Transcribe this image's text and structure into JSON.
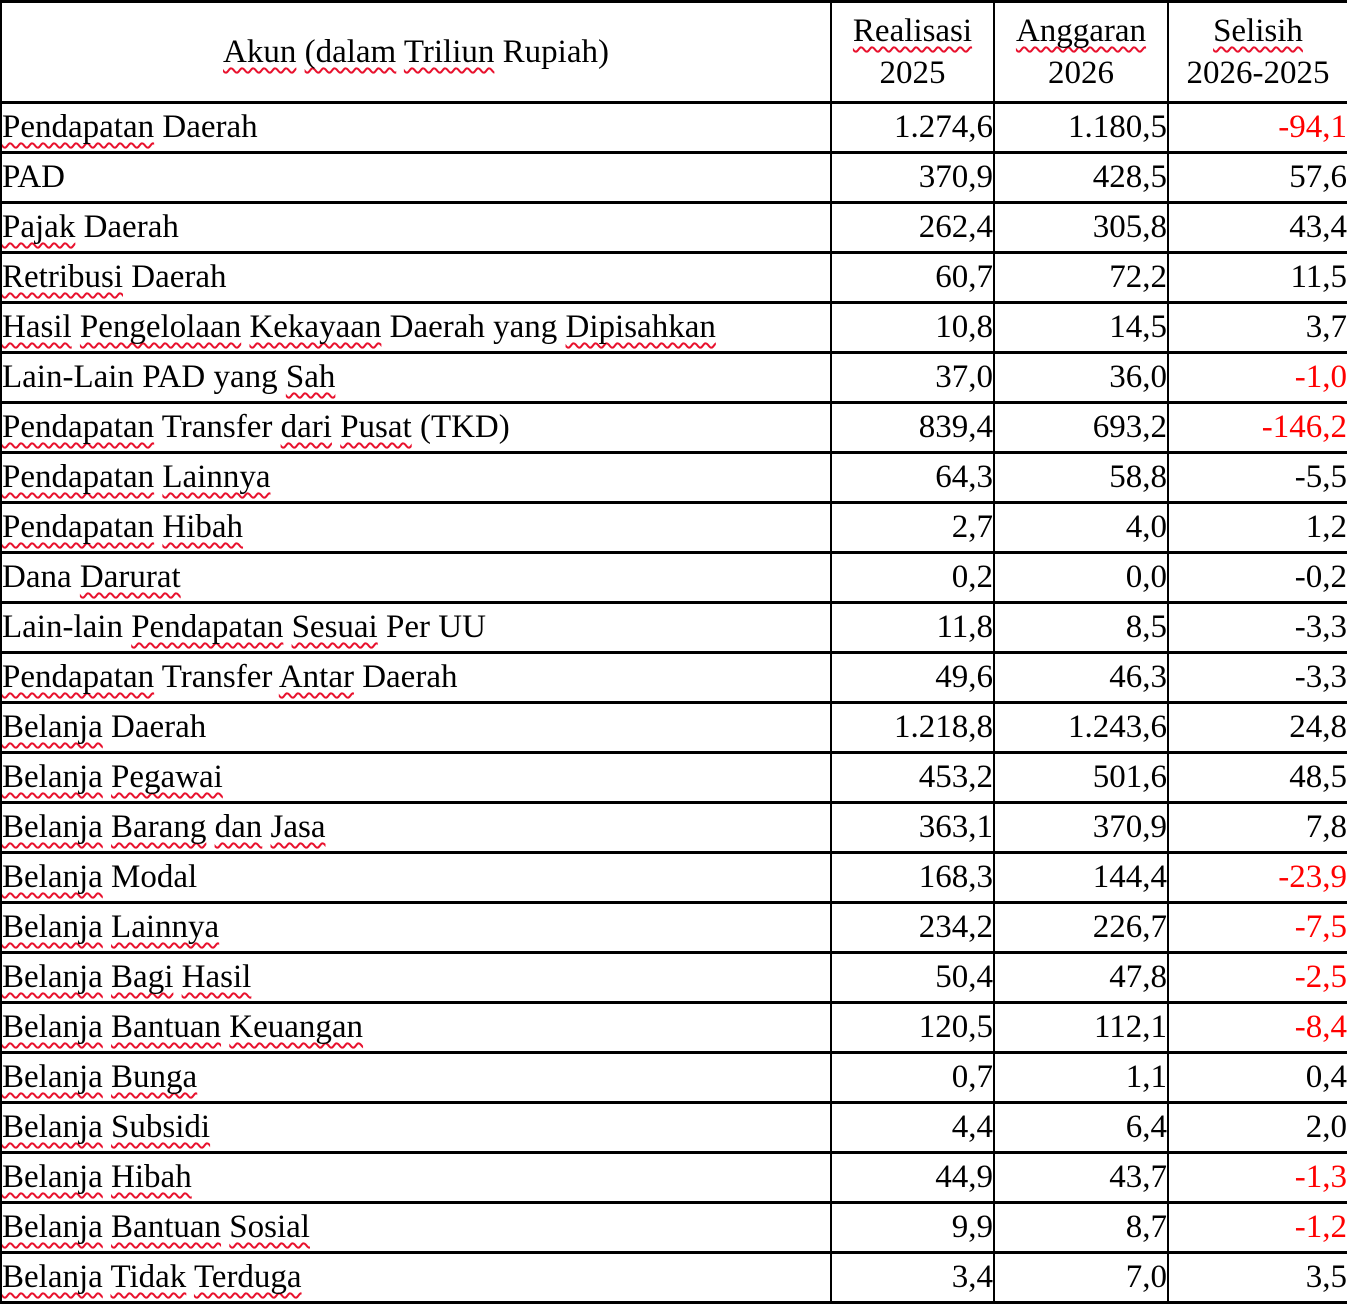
{
  "colors": {
    "text": "#000000",
    "negative_value_red": "#ff0000",
    "squiggle_red": "#e8112d",
    "border": "#000000",
    "background": "#ffffff"
  },
  "table": {
    "columns": [
      {
        "id": "akun",
        "label": "Akun (dalam Triliun Rupiah)",
        "header_parts": [
          {
            "t": "Akun",
            "w": true
          },
          {
            "t": "(dalam",
            "w": true
          },
          {
            "t": "Triliun",
            "w": true
          },
          {
            "t": "Rupiah)",
            "w": false
          }
        ],
        "header_line2": ""
      },
      {
        "id": "realisasi",
        "label": "Realisasi 2025",
        "header_parts": [
          {
            "t": "Realisasi",
            "w": true
          }
        ],
        "header_line2": "2025"
      },
      {
        "id": "anggaran",
        "label": "Anggaran 2026",
        "header_parts": [
          {
            "t": "Anggaran",
            "w": true
          }
        ],
        "header_line2": "2026"
      },
      {
        "id": "selisih",
        "label": "Selisih 2026-2025",
        "header_parts": [
          {
            "t": "Selisih",
            "w": true
          }
        ],
        "header_line2": "2026-2025"
      }
    ],
    "rows": [
      {
        "label": "Pendapatan Daerah",
        "indent": 0,
        "parts": [
          {
            "t": "Pendapatan",
            "w": true
          },
          {
            "t": "Daerah",
            "w": false
          }
        ],
        "realisasi": "1.274,6",
        "anggaran": "1.180,5",
        "selisih": "-94,1",
        "selisih_red": true
      },
      {
        "label": "PAD",
        "indent": 1,
        "parts": [
          {
            "t": "PAD",
            "w": false
          }
        ],
        "realisasi": "370,9",
        "anggaran": "428,5",
        "selisih": "57,6",
        "selisih_red": false
      },
      {
        "label": "Pajak Daerah",
        "indent": 2,
        "parts": [
          {
            "t": "Pajak",
            "w": true
          },
          {
            "t": "Daerah",
            "w": false
          }
        ],
        "realisasi": "262,4",
        "anggaran": "305,8",
        "selisih": "43,4",
        "selisih_red": false
      },
      {
        "label": "Retribusi Daerah",
        "indent": 2,
        "parts": [
          {
            "t": "Retribusi",
            "w": true
          },
          {
            "t": "Daerah",
            "w": false
          }
        ],
        "realisasi": "60,7",
        "anggaran": "72,2",
        "selisih": "11,5",
        "selisih_red": false
      },
      {
        "label": "Hasil Pengelolaan Kekayaan Daerah yang Dipisahkan",
        "indent": 2,
        "parts": [
          {
            "t": "Hasil",
            "w": true
          },
          {
            "t": "Pengelolaan",
            "w": true
          },
          {
            "t": "Kekayaan",
            "w": true
          },
          {
            "t": "Daerah",
            "w": false
          },
          {
            "t": "yang",
            "w": false
          },
          {
            "t": "Dipisahkan",
            "w": true
          }
        ],
        "realisasi": "10,8",
        "anggaran": "14,5",
        "selisih": "3,7",
        "selisih_red": false
      },
      {
        "label": "Lain-Lain PAD yang Sah",
        "indent": 2,
        "parts": [
          {
            "t": "Lain-Lain",
            "w": false
          },
          {
            "t": "PAD",
            "w": false
          },
          {
            "t": "yang",
            "w": false
          },
          {
            "t": "Sah",
            "w": true
          }
        ],
        "realisasi": "37,0",
        "anggaran": "36,0",
        "selisih": "-1,0",
        "selisih_red": true
      },
      {
        "label": "Pendapatan Transfer dari Pusat (TKD)",
        "indent": 1,
        "parts": [
          {
            "t": "Pendapatan",
            "w": true
          },
          {
            "t": "Transfer",
            "w": false
          },
          {
            "t": "dari",
            "w": true
          },
          {
            "t": "Pusat",
            "w": true
          },
          {
            "t": "(TKD)",
            "w": false
          }
        ],
        "realisasi": "839,4",
        "anggaran": "693,2",
        "selisih": "-146,2",
        "selisih_red": true
      },
      {
        "label": "Pendapatan Lainnya",
        "indent": 1,
        "parts": [
          {
            "t": "Pendapatan",
            "w": true
          },
          {
            "t": "Lainnya",
            "w": true
          }
        ],
        "realisasi": "64,3",
        "anggaran": "58,8",
        "selisih": "-5,5",
        "selisih_red": false
      },
      {
        "label": "Pendapatan Hibah",
        "indent": 2,
        "parts": [
          {
            "t": "Pendapatan",
            "w": true
          },
          {
            "t": "Hibah",
            "w": true
          }
        ],
        "realisasi": "2,7",
        "anggaran": "4,0",
        "selisih": "1,2",
        "selisih_red": false
      },
      {
        "label": "Dana Darurat",
        "indent": 2,
        "parts": [
          {
            "t": "Dana",
            "w": false
          },
          {
            "t": "Darurat",
            "w": true
          }
        ],
        "realisasi": "0,2",
        "anggaran": "0,0",
        "selisih": "-0,2",
        "selisih_red": false
      },
      {
        "label": "Lain-lain Pendapatan Sesuai Per UU",
        "indent": 2,
        "parts": [
          {
            "t": "Lain-lain",
            "w": false
          },
          {
            "t": "Pendapatan",
            "w": true
          },
          {
            "t": "Sesuai",
            "w": true
          },
          {
            "t": "Per",
            "w": false
          },
          {
            "t": "UU",
            "w": false
          }
        ],
        "realisasi": "11,8",
        "anggaran": "8,5",
        "selisih": "-3,3",
        "selisih_red": false
      },
      {
        "label": "Pendapatan Transfer Antar Daerah",
        "indent": 2,
        "parts": [
          {
            "t": "Pendapatan",
            "w": true
          },
          {
            "t": "Transfer",
            "w": false
          },
          {
            "t": "Antar",
            "w": true
          },
          {
            "t": "Daerah",
            "w": false
          }
        ],
        "realisasi": "49,6",
        "anggaran": "46,3",
        "selisih": "-3,3",
        "selisih_red": false
      },
      {
        "label": "Belanja Daerah",
        "indent": 0,
        "parts": [
          {
            "t": "Belanja",
            "w": true
          },
          {
            "t": "Daerah",
            "w": false
          }
        ],
        "realisasi": "1.218,8",
        "anggaran": "1.243,6",
        "selisih": "24,8",
        "selisih_red": false
      },
      {
        "label": "Belanja Pegawai",
        "indent": 1,
        "parts": [
          {
            "t": "Belanja",
            "w": true
          },
          {
            "t": "Pegawai",
            "w": true
          }
        ],
        "realisasi": "453,2",
        "anggaran": "501,6",
        "selisih": "48,5",
        "selisih_red": false
      },
      {
        "label": "Belanja Barang dan Jasa",
        "indent": 1,
        "parts": [
          {
            "t": "Belanja",
            "w": true
          },
          {
            "t": "Barang",
            "w": true
          },
          {
            "t": "dan",
            "w": true
          },
          {
            "t": "Jasa",
            "w": true
          }
        ],
        "realisasi": "363,1",
        "anggaran": "370,9",
        "selisih": "7,8",
        "selisih_red": false
      },
      {
        "label": "Belanja Modal",
        "indent": 1,
        "parts": [
          {
            "t": "Belanja",
            "w": true
          },
          {
            "t": "Modal",
            "w": false
          }
        ],
        "realisasi": "168,3",
        "anggaran": "144,4",
        "selisih": "-23,9",
        "selisih_red": true
      },
      {
        "label": "Belanja Lainnya",
        "indent": 1,
        "parts": [
          {
            "t": "Belanja",
            "w": true
          },
          {
            "t": "Lainnya",
            "w": true
          }
        ],
        "realisasi": "234,2",
        "anggaran": "226,7",
        "selisih": "-7,5",
        "selisih_red": true
      },
      {
        "label": "Belanja Bagi Hasil",
        "indent": 1,
        "parts": [
          {
            "t": "Belanja",
            "w": true
          },
          {
            "t": "Bagi",
            "w": true
          },
          {
            "t": "Hasil",
            "w": true
          }
        ],
        "realisasi": "50,4",
        "anggaran": "47,8",
        "selisih": "-2,5",
        "selisih_red": true
      },
      {
        "label": "Belanja Bantuan Keuangan",
        "indent": 1,
        "parts": [
          {
            "t": "Belanja",
            "w": true
          },
          {
            "t": "Bantuan",
            "w": true
          },
          {
            "t": "Keuangan",
            "w": true
          }
        ],
        "realisasi": "120,5",
        "anggaran": "112,1",
        "selisih": "-8,4",
        "selisih_red": true
      },
      {
        "label": "Belanja Bunga",
        "indent": 1,
        "parts": [
          {
            "t": "Belanja",
            "w": true
          },
          {
            "t": "Bunga",
            "w": true
          }
        ],
        "realisasi": "0,7",
        "anggaran": "1,1",
        "selisih": "0,4",
        "selisih_red": false
      },
      {
        "label": "Belanja Subsidi",
        "indent": 1,
        "parts": [
          {
            "t": "Belanja",
            "w": true
          },
          {
            "t": "Subsidi",
            "w": true
          }
        ],
        "realisasi": "4,4",
        "anggaran": "6,4",
        "selisih": "2,0",
        "selisih_red": false
      },
      {
        "label": "Belanja Hibah",
        "indent": 1,
        "parts": [
          {
            "t": "Belanja",
            "w": true
          },
          {
            "t": "Hibah",
            "w": true
          }
        ],
        "realisasi": "44,9",
        "anggaran": "43,7",
        "selisih": "-1,3",
        "selisih_red": true
      },
      {
        "label": "Belanja Bantuan Sosial",
        "indent": 1,
        "parts": [
          {
            "t": "Belanja",
            "w": true
          },
          {
            "t": "Bantuan",
            "w": true
          },
          {
            "t": "Sosial",
            "w": true
          }
        ],
        "realisasi": "9,9",
        "anggaran": "8,7",
        "selisih": "-1,2",
        "selisih_red": true
      },
      {
        "label": "Belanja Tidak Terduga",
        "indent": 1,
        "parts": [
          {
            "t": "Belanja",
            "w": true
          },
          {
            "t": "Tidak",
            "w": true
          },
          {
            "t": "Terduga",
            "w": true
          }
        ],
        "realisasi": "3,4",
        "anggaran": "7,0",
        "selisih": "3,5",
        "selisih_red": false
      }
    ]
  }
}
